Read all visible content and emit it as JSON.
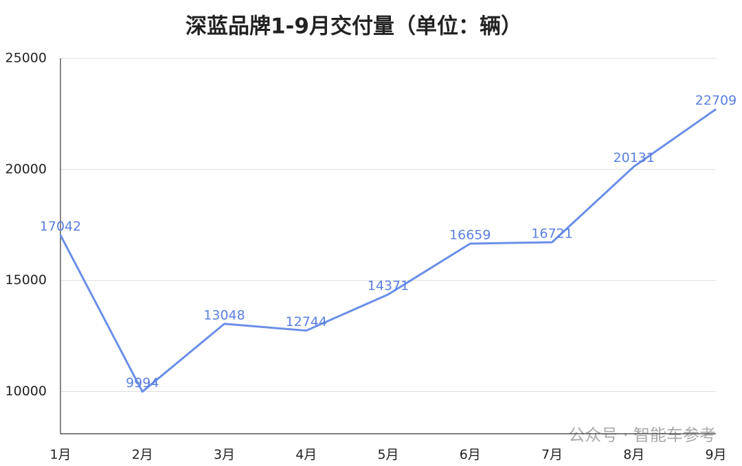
{
  "chart_data": {
    "type": "line",
    "title": "深蓝品牌1-9月交付量（单位：辆）",
    "categories": [
      "1月",
      "2月",
      "3月",
      "4月",
      "5月",
      "6月",
      "7月",
      "8月",
      "9月"
    ],
    "series": [
      {
        "name": "交付量",
        "color": "#6a8ee8",
        "values": [
          17042,
          9994,
          13048,
          12744,
          14371,
          16659,
          16721,
          20131,
          22709
        ]
      }
    ],
    "ylim": [
      8100,
      25000
    ],
    "yticks": [
      10000,
      15000,
      20000,
      25000
    ],
    "grid": true,
    "watermark": "公众号 · 智能车参考"
  }
}
